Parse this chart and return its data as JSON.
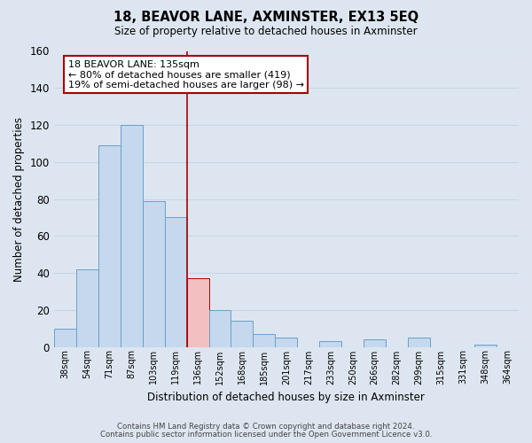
{
  "title": "18, BEAVOR LANE, AXMINSTER, EX13 5EQ",
  "subtitle": "Size of property relative to detached houses in Axminster",
  "xlabel": "Distribution of detached houses by size in Axminster",
  "ylabel": "Number of detached properties",
  "bar_labels": [
    "38sqm",
    "54sqm",
    "71sqm",
    "87sqm",
    "103sqm",
    "119sqm",
    "136sqm",
    "152sqm",
    "168sqm",
    "185sqm",
    "201sqm",
    "217sqm",
    "233sqm",
    "250sqm",
    "266sqm",
    "282sqm",
    "299sqm",
    "315sqm",
    "331sqm",
    "348sqm",
    "364sqm"
  ],
  "bar_values": [
    10,
    42,
    109,
    120,
    79,
    70,
    37,
    20,
    14,
    7,
    5,
    0,
    3,
    0,
    4,
    0,
    5,
    0,
    0,
    1,
    0
  ],
  "bar_color": "#c5d8ee",
  "bar_edge_color": "#6aa0cc",
  "highlight_bar_index": 6,
  "highlight_bar_color": "#f2c0c0",
  "highlight_bar_edge_color": "#aa0000",
  "vline_x": 5.5,
  "vline_color": "#aa0000",
  "ylim": [
    0,
    160
  ],
  "yticks": [
    0,
    20,
    40,
    60,
    80,
    100,
    120,
    140,
    160
  ],
  "annotation_title": "18 BEAVOR LANE: 135sqm",
  "annotation_line1": "← 80% of detached houses are smaller (419)",
  "annotation_line2": "19% of semi-detached houses are larger (98) →",
  "annotation_box_color": "#ffffff",
  "annotation_box_edge_color": "#aa0000",
  "grid_color": "#c8d4e4",
  "background_color": "#dde6f0",
  "footer_line1": "Contains HM Land Registry data © Crown copyright and database right 2024.",
  "footer_line2": "Contains public sector information licensed under the Open Government Licence v3.0."
}
